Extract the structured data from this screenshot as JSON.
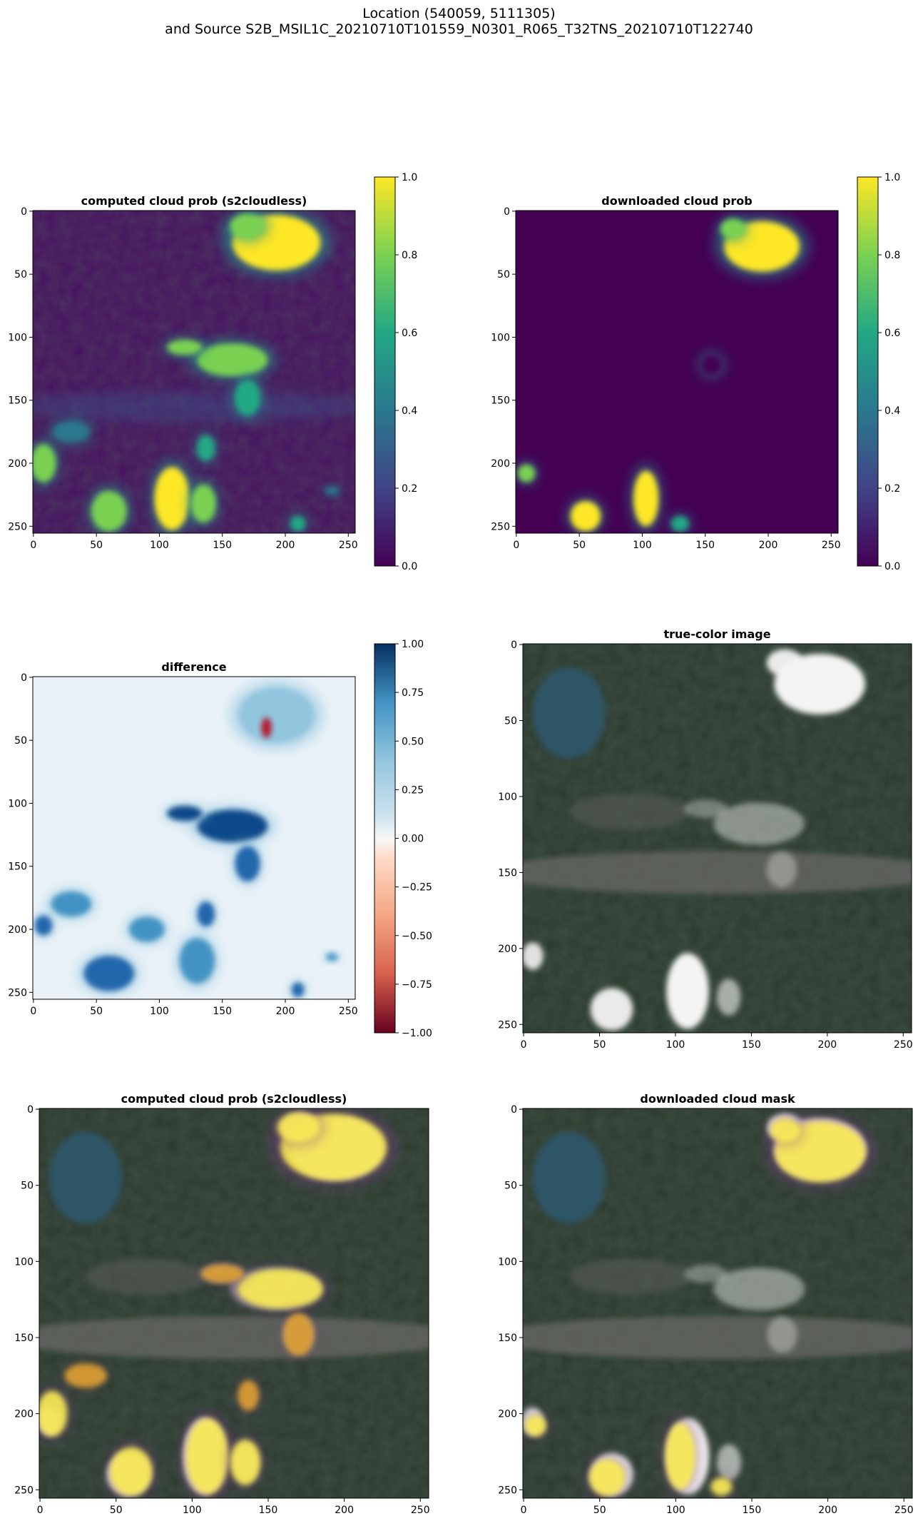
{
  "figure": {
    "suptitle_line1": "Location (540059, 5111305)",
    "suptitle_line2": "and Source S2B_MSIL1C_20210710T101559_N0301_R065_T32TNS_20210710T122740"
  },
  "chart_data": [
    {
      "type": "heatmap",
      "title": "computed cloud prob (s2cloudless)",
      "colormap": "viridis",
      "xticks": [
        0,
        50,
        100,
        150,
        200,
        250
      ],
      "yticks": [
        0,
        50,
        100,
        150,
        200,
        250
      ],
      "xlim": [
        0,
        255
      ],
      "ylim": [
        255,
        0
      ],
      "colorbar": {
        "range": [
          0.0,
          1.0
        ],
        "ticks": [
          "0.0",
          "0.2",
          "0.4",
          "0.6",
          "0.8",
          "1.0"
        ]
      },
      "blobs": [
        {
          "cx": 193,
          "cy": 25,
          "rx": 35,
          "ry": 22,
          "v": 1.0
        },
        {
          "cx": 170,
          "cy": 12,
          "rx": 14,
          "ry": 10,
          "v": 0.95
        },
        {
          "cx": 158,
          "cy": 118,
          "rx": 28,
          "ry": 13,
          "v": 0.85
        },
        {
          "cx": 120,
          "cy": 108,
          "rx": 14,
          "ry": 6,
          "v": 0.8
        },
        {
          "cx": 170,
          "cy": 148,
          "rx": 10,
          "ry": 14,
          "v": 0.7
        },
        {
          "cx": 110,
          "cy": 228,
          "rx": 14,
          "ry": 25,
          "v": 1.0
        },
        {
          "cx": 60,
          "cy": 238,
          "rx": 14,
          "ry": 16,
          "v": 0.95
        },
        {
          "cx": 8,
          "cy": 200,
          "rx": 10,
          "ry": 15,
          "v": 0.9
        },
        {
          "cx": 135,
          "cy": 232,
          "rx": 10,
          "ry": 15,
          "v": 0.85
        },
        {
          "cx": 137,
          "cy": 188,
          "rx": 7,
          "ry": 10,
          "v": 0.7
        },
        {
          "cx": 30,
          "cy": 175,
          "rx": 14,
          "ry": 8,
          "v": 0.45
        },
        {
          "cx": 210,
          "cy": 248,
          "rx": 6,
          "ry": 6,
          "v": 0.7
        },
        {
          "cx": 237,
          "cy": 222,
          "rx": 6,
          "ry": 3,
          "v": 0.5
        }
      ]
    },
    {
      "type": "heatmap",
      "title": "downloaded cloud prob",
      "colormap": "viridis",
      "xticks": [
        0,
        50,
        100,
        150,
        200,
        250
      ],
      "yticks": [
        0,
        50,
        100,
        150,
        200,
        250
      ],
      "xlim": [
        0,
        255
      ],
      "ylim": [
        255,
        0
      ],
      "colorbar": {
        "range": [
          0.0,
          1.0
        ],
        "ticks": [
          "0.0",
          "0.2",
          "0.4",
          "0.6",
          "0.8",
          "1.0"
        ]
      },
      "blobs": [
        {
          "cx": 195,
          "cy": 28,
          "rx": 30,
          "ry": 20,
          "v": 1.0
        },
        {
          "cx": 172,
          "cy": 14,
          "rx": 10,
          "ry": 8,
          "v": 0.9
        },
        {
          "cx": 103,
          "cy": 228,
          "rx": 10,
          "ry": 22,
          "v": 1.0
        },
        {
          "cx": 55,
          "cy": 242,
          "rx": 12,
          "ry": 12,
          "v": 1.0
        },
        {
          "cx": 8,
          "cy": 208,
          "rx": 7,
          "ry": 7,
          "v": 0.9
        },
        {
          "cx": 130,
          "cy": 248,
          "rx": 7,
          "ry": 6,
          "v": 0.7
        },
        {
          "cx": 155,
          "cy": 122,
          "rx": 8,
          "ry": 8,
          "v": 0.15
        }
      ]
    },
    {
      "type": "heatmap",
      "title": "difference",
      "colormap": "RdBu",
      "xticks": [
        0,
        50,
        100,
        150,
        200,
        250
      ],
      "yticks": [
        0,
        50,
        100,
        150,
        200,
        250
      ],
      "xlim": [
        0,
        255
      ],
      "ylim": [
        255,
        0
      ],
      "colorbar": {
        "range": [
          -1.0,
          1.0
        ],
        "ticks": [
          "−1.00",
          "−0.75",
          "−0.50",
          "−0.25",
          "0.00",
          "0.25",
          "0.50",
          "0.75",
          "1.00"
        ]
      },
      "blobs": [
        {
          "cx": 158,
          "cy": 118,
          "rx": 28,
          "ry": 13,
          "v": 0.85
        },
        {
          "cx": 120,
          "cy": 108,
          "rx": 14,
          "ry": 6,
          "v": 0.8
        },
        {
          "cx": 170,
          "cy": 148,
          "rx": 10,
          "ry": 14,
          "v": 0.7
        },
        {
          "cx": 193,
          "cy": 30,
          "rx": 30,
          "ry": 22,
          "v": 0.3
        },
        {
          "cx": 137,
          "cy": 188,
          "rx": 7,
          "ry": 10,
          "v": 0.7
        },
        {
          "cx": 30,
          "cy": 180,
          "rx": 16,
          "ry": 10,
          "v": 0.45
        },
        {
          "cx": 90,
          "cy": 200,
          "rx": 14,
          "ry": 10,
          "v": 0.5
        },
        {
          "cx": 60,
          "cy": 235,
          "rx": 20,
          "ry": 14,
          "v": 0.55
        },
        {
          "cx": 130,
          "cy": 225,
          "rx": 14,
          "ry": 18,
          "v": 0.5
        },
        {
          "cx": 8,
          "cy": 197,
          "rx": 7,
          "ry": 8,
          "v": 0.7
        },
        {
          "cx": 210,
          "cy": 248,
          "rx": 5,
          "ry": 6,
          "v": 0.6
        },
        {
          "cx": 237,
          "cy": 222,
          "rx": 5,
          "ry": 3,
          "v": 0.5
        },
        {
          "cx": 185,
          "cy": 40,
          "rx": 4,
          "ry": 8,
          "v": -0.9
        }
      ]
    },
    {
      "type": "image",
      "title": "true-color image",
      "xticks": [
        0,
        50,
        100,
        150,
        200,
        250
      ],
      "yticks": [
        0,
        50,
        100,
        150,
        200,
        250
      ],
      "xlim": [
        0,
        255
      ],
      "ylim": [
        255,
        0
      ]
    },
    {
      "type": "image",
      "title": "computed cloud prob (s2cloudless)",
      "overlay": "cloud probability (inferno)",
      "xticks": [
        0,
        50,
        100,
        150,
        200,
        250
      ],
      "yticks": [
        0,
        50,
        100,
        150,
        200,
        250
      ],
      "xlim": [
        0,
        255
      ],
      "ylim": [
        255,
        0
      ]
    },
    {
      "type": "image",
      "title": "downloaded cloud mask",
      "overlay": "cloud mask (inferno)",
      "xticks": [
        0,
        50,
        100,
        150,
        200,
        250
      ],
      "yticks": [
        0,
        50,
        100,
        150,
        200,
        250
      ],
      "xlim": [
        0,
        255
      ],
      "ylim": [
        255,
        0
      ]
    }
  ]
}
